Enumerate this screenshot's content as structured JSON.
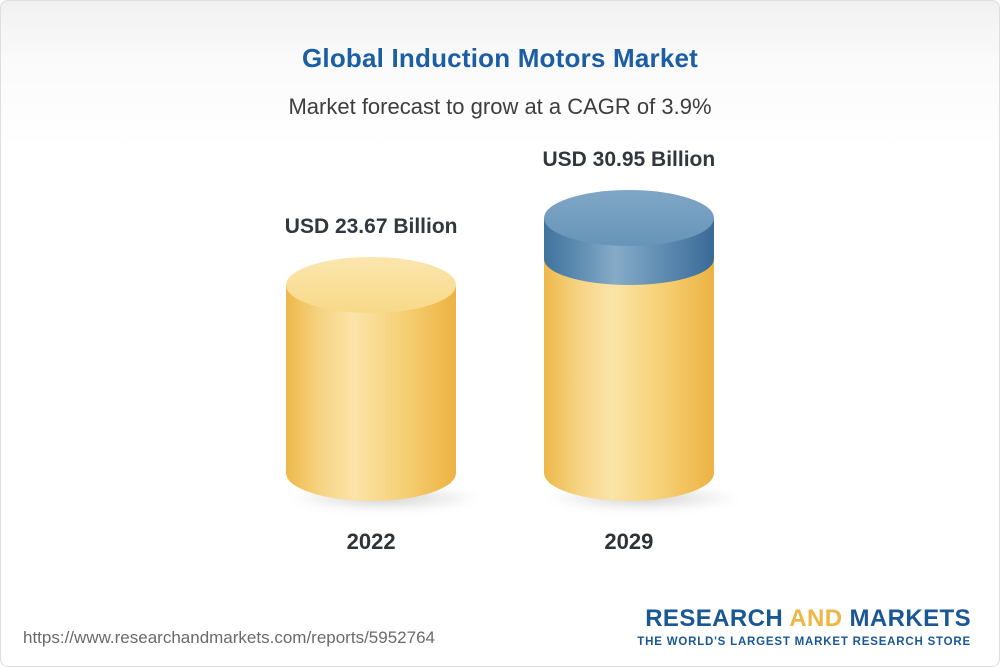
{
  "header": {
    "title": "Global Induction Motors Market",
    "subtitle": "Market forecast to grow at a CAGR of 3.9%"
  },
  "chart_data": {
    "type": "bar",
    "variant": "3d-cylinder",
    "categories": [
      "2022",
      "2029"
    ],
    "values": [
      23.67,
      30.95
    ],
    "value_labels": [
      "USD 23.67 Billion",
      "USD 30.95 Billion"
    ],
    "unit": "USD Billion",
    "cagr_pct": 3.9,
    "ylim": [
      0,
      30.95
    ],
    "bar_color": "#f2c35b",
    "growth_segment_color": "#4f80a9",
    "legend": "none",
    "grid": false
  },
  "footer": {
    "url": "https://www.researchandmarkets.com/reports/5952764",
    "logo": {
      "word1": "RESEARCH ",
      "word2": "AND",
      "word3": " MARKETS",
      "tagline": "THE WORLD'S LARGEST MARKET RESEARCH STORE"
    }
  },
  "colors": {
    "title": "#1c5ea3",
    "subtitle": "#3d3d3d",
    "logo_blue": "#1a5795",
    "logo_yellow": "#eeb644"
  }
}
